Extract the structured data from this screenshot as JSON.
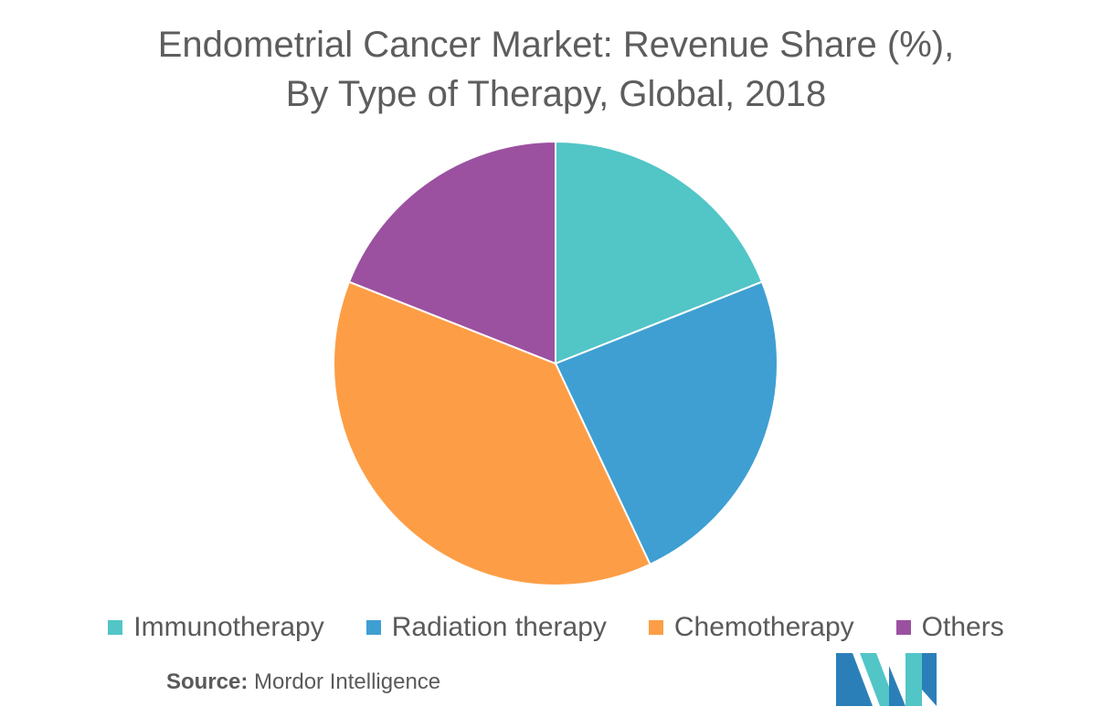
{
  "chart_data": {
    "type": "pie",
    "title_lines": [
      "Endometrial Cancer Market: Revenue Share (%),",
      "By Type of Therapy, Global, 2018"
    ],
    "slices": [
      {
        "name": "Immunotherapy",
        "value": 19,
        "color": "#52c5c7"
      },
      {
        "name": "Radiation therapy",
        "value": 24,
        "color": "#3f9fd2"
      },
      {
        "name": "Chemotherapy",
        "value": 38,
        "color": "#fd9e46"
      },
      {
        "name": "Others",
        "value": 19,
        "color": "#9b51a0"
      }
    ],
    "start_angle_deg": 0,
    "direction": "clockwise",
    "legend_position": "bottom"
  },
  "source": {
    "label": "Source:",
    "text": "Mordor Intelligence"
  },
  "logo": {
    "icon": "mordor-intelligence-logo",
    "colors": [
      "#2b7fb8",
      "#52c5c7"
    ]
  }
}
